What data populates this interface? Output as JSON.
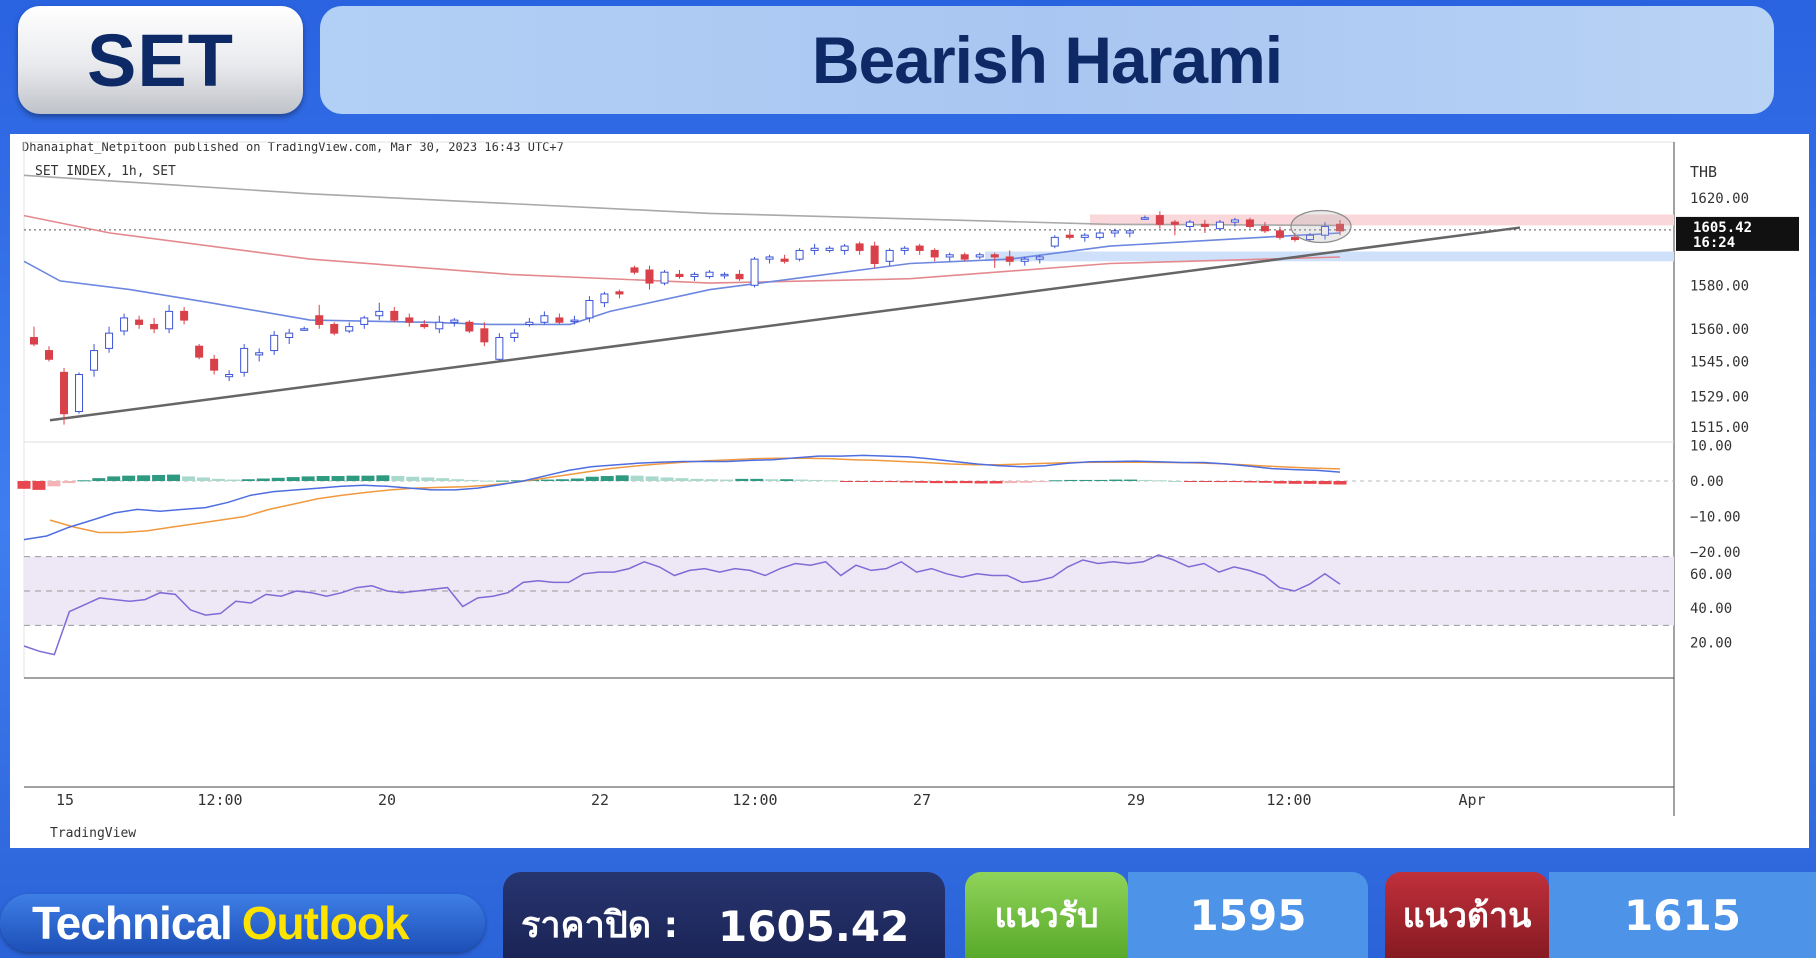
{
  "header": {
    "symbol": "SET",
    "pattern": "Bearish Harami"
  },
  "chart_data": {
    "type": "candlestick",
    "publisher": "Dhanaiphat_Netpitoon published on TradingView.com, Mar 30, 2023 16:43 UTC+7",
    "instrument": "SET INDEX, 1h, SET",
    "currency": "THB",
    "brand": "TradingView",
    "x_ticks": [
      "15",
      "12:00",
      "20",
      "22",
      "12:00",
      "27",
      "29",
      "12:00",
      "Apr"
    ],
    "price_ticks": [
      "1620.00",
      "1580.00",
      "1560.00",
      "1545.00",
      "1529.00",
      "1515.00"
    ],
    "macd_ticks": [
      "10.00",
      "0.00",
      "−10.00",
      "−20.00"
    ],
    "rsi_ticks": [
      "60.00",
      "40.00",
      "20.00"
    ],
    "last_price": "1605.42",
    "last_time": "16:24",
    "price_range": [
      1508,
      1638
    ],
    "resistance_zone": [
      1607.5,
      1612.5
    ],
    "support_zone": [
      1591,
      1595.5
    ],
    "colors": {
      "up": "#3d55d6",
      "down": "#d9414a"
    },
    "candles": [
      {
        "o": 1556,
        "h": 1561,
        "l": 1552,
        "c": 1553
      },
      {
        "o": 1550,
        "h": 1552,
        "l": 1545,
        "c": 1546
      },
      {
        "o": 1540,
        "h": 1542,
        "l": 1516,
        "c": 1521
      },
      {
        "o": 1522,
        "h": 1540,
        "l": 1521,
        "c": 1539
      },
      {
        "o": 1541,
        "h": 1553,
        "l": 1538,
        "c": 1550
      },
      {
        "o": 1551,
        "h": 1561,
        "l": 1549,
        "c": 1558
      },
      {
        "o": 1559,
        "h": 1567,
        "l": 1557,
        "c": 1565
      },
      {
        "o": 1564,
        "h": 1566,
        "l": 1560,
        "c": 1562
      },
      {
        "o": 1562,
        "h": 1565,
        "l": 1558,
        "c": 1560
      },
      {
        "o": 1560,
        "h": 1571,
        "l": 1558,
        "c": 1568
      },
      {
        "o": 1568,
        "h": 1570,
        "l": 1562,
        "c": 1564
      },
      {
        "o": 1552,
        "h": 1553,
        "l": 1546,
        "c": 1547
      },
      {
        "o": 1546,
        "h": 1548,
        "l": 1539,
        "c": 1541
      },
      {
        "o": 1538,
        "h": 1541,
        "l": 1536,
        "c": 1539
      },
      {
        "o": 1540,
        "h": 1553,
        "l": 1538,
        "c": 1551
      },
      {
        "o": 1548,
        "h": 1551,
        "l": 1545,
        "c": 1549
      },
      {
        "o": 1550,
        "h": 1559,
        "l": 1548,
        "c": 1557
      },
      {
        "o": 1556,
        "h": 1560,
        "l": 1553,
        "c": 1558
      },
      {
        "o": 1560,
        "h": 1561,
        "l": 1559,
        "c": 1560
      },
      {
        "o": 1566,
        "h": 1571,
        "l": 1560,
        "c": 1562
      },
      {
        "o": 1562,
        "h": 1563,
        "l": 1557,
        "c": 1558
      },
      {
        "o": 1559,
        "h": 1563,
        "l": 1558,
        "c": 1561
      },
      {
        "o": 1562,
        "h": 1566,
        "l": 1560,
        "c": 1565
      },
      {
        "o": 1566,
        "h": 1572,
        "l": 1564,
        "c": 1568
      },
      {
        "o": 1568,
        "h": 1570,
        "l": 1563,
        "c": 1564
      },
      {
        "o": 1565,
        "h": 1567,
        "l": 1561,
        "c": 1563
      },
      {
        "o": 1562,
        "h": 1564,
        "l": 1560,
        "c": 1561
      },
      {
        "o": 1560,
        "h": 1566,
        "l": 1558,
        "c": 1563
      },
      {
        "o": 1563,
        "h": 1565,
        "l": 1561,
        "c": 1564
      },
      {
        "o": 1563,
        "h": 1564,
        "l": 1558,
        "c": 1559
      },
      {
        "o": 1560,
        "h": 1563,
        "l": 1552,
        "c": 1554
      },
      {
        "o": 1546,
        "h": 1558,
        "l": 1545,
        "c": 1556
      },
      {
        "o": 1556,
        "h": 1560,
        "l": 1554,
        "c": 1558
      },
      {
        "o": 1562,
        "h": 1565,
        "l": 1561,
        "c": 1563
      },
      {
        "o": 1563,
        "h": 1568,
        "l": 1562,
        "c": 1566
      },
      {
        "o": 1565,
        "h": 1567,
        "l": 1562,
        "c": 1563
      },
      {
        "o": 1564,
        "h": 1566,
        "l": 1562,
        "c": 1564
      },
      {
        "o": 1565,
        "h": 1575,
        "l": 1563,
        "c": 1573
      },
      {
        "o": 1572,
        "h": 1577,
        "l": 1570,
        "c": 1576
      },
      {
        "o": 1577,
        "h": 1578,
        "l": 1574,
        "c": 1576
      },
      {
        "o": 1588,
        "h": 1589,
        "l": 1585,
        "c": 1586
      },
      {
        "o": 1587,
        "h": 1589,
        "l": 1578,
        "c": 1581
      },
      {
        "o": 1581,
        "h": 1587,
        "l": 1580,
        "c": 1586
      },
      {
        "o": 1585,
        "h": 1587,
        "l": 1583,
        "c": 1584
      },
      {
        "o": 1584,
        "h": 1586,
        "l": 1582,
        "c": 1585
      },
      {
        "o": 1584,
        "h": 1587,
        "l": 1583,
        "c": 1586
      },
      {
        "o": 1585,
        "h": 1586,
        "l": 1583,
        "c": 1585
      },
      {
        "o": 1585,
        "h": 1587,
        "l": 1582,
        "c": 1583
      },
      {
        "o": 1580,
        "h": 1593,
        "l": 1579,
        "c": 1592
      },
      {
        "o": 1592,
        "h": 1594,
        "l": 1590,
        "c": 1593
      },
      {
        "o": 1592,
        "h": 1594,
        "l": 1590,
        "c": 1591
      },
      {
        "o": 1592,
        "h": 1597,
        "l": 1591,
        "c": 1596
      },
      {
        "o": 1596,
        "h": 1599,
        "l": 1594,
        "c": 1597
      },
      {
        "o": 1596,
        "h": 1598,
        "l": 1595,
        "c": 1597
      },
      {
        "o": 1596,
        "h": 1599,
        "l": 1594,
        "c": 1598
      },
      {
        "o": 1599,
        "h": 1600,
        "l": 1594,
        "c": 1596
      },
      {
        "o": 1598,
        "h": 1600,
        "l": 1588,
        "c": 1590
      },
      {
        "o": 1591,
        "h": 1597,
        "l": 1589,
        "c": 1596
      },
      {
        "o": 1596,
        "h": 1598,
        "l": 1594,
        "c": 1597
      },
      {
        "o": 1598,
        "h": 1599,
        "l": 1594,
        "c": 1596
      },
      {
        "o": 1596,
        "h": 1597,
        "l": 1591,
        "c": 1593
      },
      {
        "o": 1593,
        "h": 1595,
        "l": 1591,
        "c": 1594
      },
      {
        "o": 1594,
        "h": 1595,
        "l": 1591,
        "c": 1592
      },
      {
        "o": 1593,
        "h": 1595,
        "l": 1592,
        "c": 1594
      },
      {
        "o": 1594,
        "h": 1595,
        "l": 1588,
        "c": 1593
      },
      {
        "o": 1593,
        "h": 1596,
        "l": 1589,
        "c": 1591
      },
      {
        "o": 1591,
        "h": 1593,
        "l": 1589,
        "c": 1592
      },
      {
        "o": 1592,
        "h": 1594,
        "l": 1590,
        "c": 1593
      },
      {
        "o": 1598,
        "h": 1603,
        "l": 1597,
        "c": 1602
      },
      {
        "o": 1603,
        "h": 1605,
        "l": 1601,
        "c": 1602
      },
      {
        "o": 1602,
        "h": 1604,
        "l": 1600,
        "c": 1603
      },
      {
        "o": 1602,
        "h": 1605,
        "l": 1601,
        "c": 1604
      },
      {
        "o": 1604,
        "h": 1606,
        "l": 1602,
        "c": 1605
      },
      {
        "o": 1604,
        "h": 1606,
        "l": 1602,
        "c": 1605
      },
      {
        "o": 1611,
        "h": 1612,
        "l": 1610,
        "c": 1611
      },
      {
        "o": 1612,
        "h": 1614,
        "l": 1606,
        "c": 1608
      },
      {
        "o": 1609,
        "h": 1610,
        "l": 1603,
        "c": 1608
      },
      {
        "o": 1607,
        "h": 1610,
        "l": 1605,
        "c": 1609
      },
      {
        "o": 1608,
        "h": 1610,
        "l": 1604,
        "c": 1607
      },
      {
        "o": 1606,
        "h": 1610,
        "l": 1605,
        "c": 1609
      },
      {
        "o": 1609,
        "h": 1611,
        "l": 1607,
        "c": 1610
      },
      {
        "o": 1610,
        "h": 1611,
        "l": 1606,
        "c": 1607
      },
      {
        "o": 1607,
        "h": 1609,
        "l": 1604,
        "c": 1605
      },
      {
        "o": 1605,
        "h": 1607,
        "l": 1601,
        "c": 1602
      },
      {
        "o": 1602,
        "h": 1604,
        "l": 1600,
        "c": 1601
      },
      {
        "o": 1601,
        "h": 1604,
        "l": 1600,
        "c": 1603
      },
      {
        "o": 1603,
        "h": 1609,
        "l": 1601,
        "c": 1607
      },
      {
        "o": 1608,
        "h": 1610,
        "l": 1603,
        "c": 1605
      }
    ],
    "macd_hist": [
      -2.2,
      -2.5,
      -1.5,
      -0.6,
      0.2,
      0.8,
      1.3,
      1.5,
      1.6,
      1.7,
      1.8,
      1.3,
      1.0,
      0.6,
      0.4,
      0.5,
      0.7,
      0.9,
      1.1,
      1.3,
      1.4,
      1.4,
      1.5,
      1.5,
      1.6,
      1.4,
      1.2,
      1.0,
      0.8,
      0.5,
      0.3,
      0.1,
      0.1,
      0.2,
      0.3,
      0.4,
      0.5,
      0.7,
      1.2,
      1.4,
      1.6,
      1.5,
      1.3,
      1.0,
      0.8,
      0.6,
      0.5,
      0.4,
      0.6,
      0.6,
      0.5,
      0.5,
      0.4,
      0.3,
      0.2,
      -0.1,
      -0.2,
      -0.3,
      -0.3,
      -0.4,
      -0.5,
      -0.6,
      -0.6,
      -0.6,
      -0.7,
      -0.7,
      -0.6,
      -0.5,
      -0.3,
      0.2,
      0.3,
      0.3,
      0.3,
      0.4,
      0.4,
      0.3,
      0.2,
      0.0,
      -0.1,
      -0.2,
      -0.3,
      -0.3,
      -0.4,
      -0.5,
      -0.7,
      -0.8,
      -0.8,
      -0.9,
      -1.0
    ],
    "macd_line": [
      -16.5,
      -15.5,
      -13,
      -11,
      -9,
      -8,
      -8.5,
      -8,
      -7.5,
      -6,
      -4,
      -3,
      -2.5,
      -2,
      -1.5,
      -1.2,
      -1.5,
      -2,
      -2.5,
      -2.5,
      -2,
      -1,
      0,
      1.5,
      3,
      4,
      4.5,
      5,
      5.3,
      5.5,
      5.5,
      5.5,
      5.8,
      6,
      6.5,
      7,
      7,
      7.2,
      7,
      6.8,
      6.2,
      5.5,
      4.8,
      4.3,
      4,
      4.3,
      5,
      5.4,
      5.5,
      5.6,
      5.4,
      5.2,
      5.2,
      4.8,
      4.2,
      3.5,
      3.2,
      3,
      2.5
    ],
    "signal_line": [
      -11,
      -13,
      -14.5,
      -14.5,
      -14,
      -13,
      -12,
      -11,
      -10,
      -8,
      -6.5,
      -5,
      -4,
      -3.2,
      -2.5,
      -2,
      -1.8,
      -1.6,
      -1.2,
      -0.5,
      0.5,
      1.5,
      2.5,
      3.5,
      4.2,
      4.8,
      5.3,
      5.7,
      6,
      6.3,
      6.4,
      6.4,
      6.3,
      6,
      5.8,
      5.5,
      5.2,
      4.8,
      4.6,
      4.6,
      4.8,
      5,
      5.2,
      5.3,
      5.3,
      5.3,
      5.2,
      5.1,
      4.9,
      4.6,
      4.2,
      3.9,
      3.6,
      3.4
    ],
    "rsi": [
      18,
      15,
      13,
      38,
      42,
      46,
      45,
      44,
      45,
      49,
      48,
      39,
      36,
      37,
      44,
      43,
      48,
      47,
      50,
      49,
      47,
      49,
      52,
      53,
      50,
      49,
      50,
      51,
      52,
      41,
      46,
      47,
      49,
      55,
      56,
      55,
      55,
      60,
      61,
      61,
      63,
      67,
      64,
      59,
      62,
      63,
      61,
      63,
      62,
      59,
      63,
      66,
      65,
      67,
      59,
      65,
      62,
      63,
      67,
      61,
      63,
      60,
      58,
      60,
      59,
      59,
      55,
      56,
      58,
      64,
      68,
      66,
      67,
      66,
      67,
      71,
      68,
      64,
      66,
      61,
      64,
      62,
      59,
      52,
      50,
      54,
      60,
      54
    ]
  },
  "footer": {
    "tech_word1": "Technical",
    "tech_word2": "Outlook",
    "close_label": "ราคาปิด :",
    "close_value": "1605.42",
    "support_label": "แนวรับ",
    "support_value": "1595",
    "resistance_label": "แนวต้าน",
    "resistance_value": "1615"
  }
}
